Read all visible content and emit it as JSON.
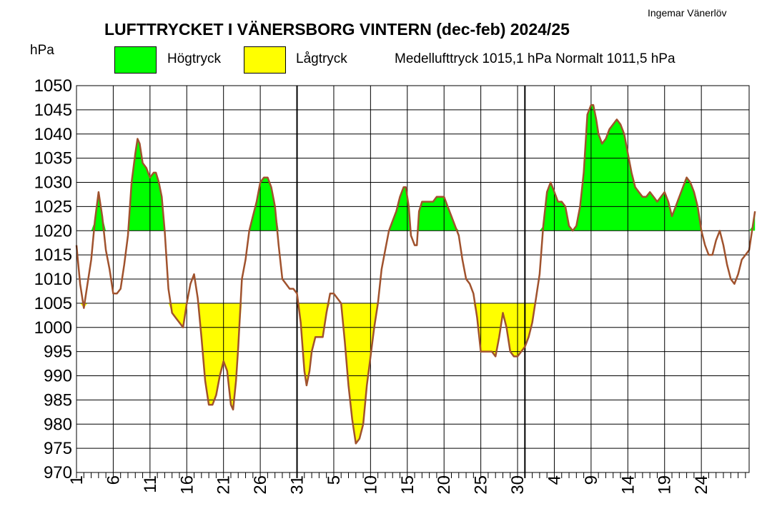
{
  "author": "Ingemar Vänerlöv",
  "title": "LUFTTRYCKET I VÄNERSBORG  VINTERN (dec-feb) 2024/25",
  "y_unit": "hPa",
  "legend": {
    "high_label": "Högtryck",
    "low_label": "Lågtryck"
  },
  "mean_text": "Medellufttryck  1015,1 hPa   Normalt  1011,5 hPa",
  "colors": {
    "high": "#00ff00",
    "low": "#ffff00",
    "line": "#a0522d",
    "grid": "#000000"
  },
  "chart_data": {
    "type": "area",
    "title": "LUFTTRYCKET I VÄNERSBORG  VINTERN (dec-feb) 2024/25",
    "ylabel": "hPa",
    "ylim": [
      970,
      1050
    ],
    "ytick_step": 5,
    "xlim": [
      1,
      91
    ],
    "xtick_labels": [
      "1",
      "6",
      "11",
      "16",
      "21",
      "26",
      "31",
      "5",
      "10",
      "15",
      "20",
      "25",
      "30",
      "4",
      "9",
      "14",
      "19",
      "24"
    ],
    "high_threshold": 1020,
    "low_threshold": 1005,
    "mean_pressure": 1015.1,
    "normal_pressure": 1011.5,
    "month_separators_day": [
      31.0,
      62.0
    ],
    "series": [
      {
        "values": [
          [
            1.0,
            1017
          ],
          [
            1.5,
            1009
          ],
          [
            2.0,
            1004
          ],
          [
            2.5,
            1009
          ],
          [
            3.0,
            1014
          ],
          [
            3.5,
            1022
          ],
          [
            4.0,
            1028
          ],
          [
            4.5,
            1023
          ],
          [
            5.0,
            1016
          ],
          [
            5.5,
            1012
          ],
          [
            6.0,
            1007
          ],
          [
            6.5,
            1007
          ],
          [
            7.0,
            1008
          ],
          [
            7.5,
            1013
          ],
          [
            8.0,
            1019
          ],
          [
            8.5,
            1030
          ],
          [
            9.0,
            1036
          ],
          [
            9.3,
            1039
          ],
          [
            9.6,
            1038
          ],
          [
            10.0,
            1034
          ],
          [
            10.5,
            1033
          ],
          [
            11.0,
            1031
          ],
          [
            11.5,
            1032
          ],
          [
            11.8,
            1032
          ],
          [
            12.2,
            1030
          ],
          [
            12.6,
            1027
          ],
          [
            13.0,
            1020
          ],
          [
            13.5,
            1008
          ],
          [
            14.0,
            1003
          ],
          [
            14.5,
            1002
          ],
          [
            15.0,
            1001
          ],
          [
            15.5,
            1000
          ],
          [
            16.0,
            1005
          ],
          [
            16.5,
            1009
          ],
          [
            17.0,
            1011
          ],
          [
            17.5,
            1006
          ],
          [
            18.0,
            998
          ],
          [
            18.5,
            989
          ],
          [
            19.0,
            984
          ],
          [
            19.5,
            984
          ],
          [
            20.0,
            986
          ],
          [
            20.5,
            990
          ],
          [
            21.0,
            993
          ],
          [
            21.5,
            991
          ],
          [
            22.0,
            984
          ],
          [
            22.3,
            983
          ],
          [
            22.7,
            989
          ],
          [
            23.0,
            996
          ],
          [
            23.5,
            1010
          ],
          [
            24.0,
            1014
          ],
          [
            24.5,
            1020
          ],
          [
            25.0,
            1023
          ],
          [
            25.5,
            1026
          ],
          [
            26.0,
            1030
          ],
          [
            26.5,
            1031
          ],
          [
            27.0,
            1031
          ],
          [
            27.5,
            1029
          ],
          [
            28.0,
            1025
          ],
          [
            28.5,
            1017
          ],
          [
            29.0,
            1010
          ],
          [
            29.5,
            1009
          ],
          [
            30.0,
            1008
          ],
          [
            30.5,
            1008
          ],
          [
            31.0,
            1007
          ],
          [
            31.5,
            1001
          ],
          [
            32.0,
            991
          ],
          [
            32.3,
            988
          ],
          [
            32.7,
            991
          ],
          [
            33.0,
            995
          ],
          [
            33.5,
            998
          ],
          [
            34.0,
            998
          ],
          [
            34.5,
            998
          ],
          [
            35.0,
            1003
          ],
          [
            35.5,
            1007
          ],
          [
            36.0,
            1007
          ],
          [
            36.5,
            1006
          ],
          [
            37.0,
            1005
          ],
          [
            37.5,
            997
          ],
          [
            38.0,
            988
          ],
          [
            38.5,
            981
          ],
          [
            39.0,
            976
          ],
          [
            39.5,
            977
          ],
          [
            40.0,
            980
          ],
          [
            40.5,
            988
          ],
          [
            41.0,
            994
          ],
          [
            41.5,
            1000
          ],
          [
            42.0,
            1005
          ],
          [
            42.5,
            1012
          ],
          [
            43.0,
            1016
          ],
          [
            43.5,
            1020
          ],
          [
            44.0,
            1022
          ],
          [
            44.5,
            1024
          ],
          [
            45.0,
            1027
          ],
          [
            45.5,
            1029
          ],
          [
            45.8,
            1029
          ],
          [
            46.2,
            1025
          ],
          [
            46.5,
            1019
          ],
          [
            47.0,
            1017
          ],
          [
            47.3,
            1017
          ],
          [
            47.6,
            1024
          ],
          [
            48.0,
            1026
          ],
          [
            48.5,
            1026
          ],
          [
            49.0,
            1026
          ],
          [
            49.5,
            1026
          ],
          [
            50.0,
            1027
          ],
          [
            50.5,
            1027
          ],
          [
            51.0,
            1027
          ],
          [
            51.5,
            1025
          ],
          [
            52.0,
            1023
          ],
          [
            52.5,
            1021
          ],
          [
            53.0,
            1019
          ],
          [
            53.5,
            1014
          ],
          [
            54.0,
            1010
          ],
          [
            54.5,
            1009
          ],
          [
            55.0,
            1007
          ],
          [
            55.5,
            1002
          ],
          [
            56.0,
            995
          ],
          [
            56.5,
            995
          ],
          [
            57.0,
            995
          ],
          [
            57.5,
            995
          ],
          [
            58.0,
            994
          ],
          [
            58.5,
            998
          ],
          [
            59.0,
            1003
          ],
          [
            59.5,
            1000
          ],
          [
            60.0,
            995
          ],
          [
            60.5,
            994
          ],
          [
            61.0,
            994
          ],
          [
            61.5,
            995
          ],
          [
            62.0,
            996
          ],
          [
            62.5,
            998
          ],
          [
            63.0,
            1001
          ],
          [
            63.5,
            1006
          ],
          [
            64.0,
            1011
          ],
          [
            64.5,
            1021
          ],
          [
            65.0,
            1028
          ],
          [
            65.5,
            1030
          ],
          [
            66.0,
            1028
          ],
          [
            66.5,
            1026
          ],
          [
            67.0,
            1026
          ],
          [
            67.5,
            1025
          ],
          [
            68.0,
            1021
          ],
          [
            68.5,
            1020
          ],
          [
            69.0,
            1021
          ],
          [
            69.5,
            1025
          ],
          [
            70.0,
            1032
          ],
          [
            70.5,
            1044
          ],
          [
            71.0,
            1046
          ],
          [
            71.3,
            1046
          ],
          [
            71.7,
            1043
          ],
          [
            72.0,
            1040
          ],
          [
            72.5,
            1038
          ],
          [
            73.0,
            1039
          ],
          [
            73.5,
            1041
          ],
          [
            74.0,
            1042
          ],
          [
            74.5,
            1043
          ],
          [
            75.0,
            1042
          ],
          [
            75.5,
            1040
          ],
          [
            76.0,
            1036
          ],
          [
            76.5,
            1032
          ],
          [
            77.0,
            1029
          ],
          [
            77.5,
            1028
          ],
          [
            78.0,
            1027
          ],
          [
            78.5,
            1027
          ],
          [
            79.0,
            1028
          ],
          [
            79.5,
            1027
          ],
          [
            80.0,
            1026
          ],
          [
            80.5,
            1027
          ],
          [
            81.0,
            1028
          ],
          [
            81.5,
            1026
          ],
          [
            82.0,
            1023
          ],
          [
            82.5,
            1025
          ],
          [
            83.0,
            1027
          ],
          [
            83.5,
            1029
          ],
          [
            84.0,
            1031
          ],
          [
            84.5,
            1030
          ],
          [
            85.0,
            1028
          ],
          [
            85.5,
            1025
          ],
          [
            86.0,
            1020
          ],
          [
            86.5,
            1017
          ],
          [
            87.0,
            1015
          ],
          [
            87.5,
            1015
          ],
          [
            88.0,
            1018
          ],
          [
            88.5,
            1020
          ],
          [
            89.0,
            1017
          ],
          [
            89.5,
            1013
          ],
          [
            90.0,
            1010
          ],
          [
            90.5,
            1009
          ],
          [
            91.0,
            1011
          ],
          [
            91.5,
            1014
          ],
          [
            92.0,
            1015
          ],
          [
            92.5,
            1016
          ],
          [
            93.0,
            1021
          ],
          [
            93.3,
            1024
          ]
        ]
      }
    ]
  }
}
